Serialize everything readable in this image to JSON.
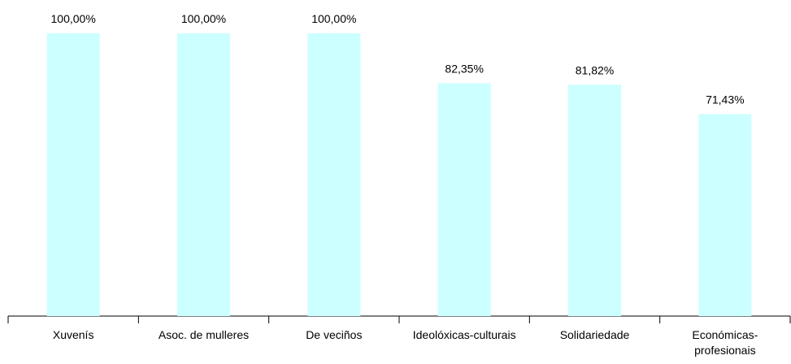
{
  "chart_data": {
    "type": "bar",
    "categories": [
      "Xuvenís",
      "Asoc. de mulleres",
      "De veciños",
      "Ideolóxicas-culturais",
      "Solidariedade",
      "Económicas-profesionais"
    ],
    "values": [
      100.0,
      100.0,
      100.0,
      82.35,
      81.82,
      71.43
    ],
    "data_labels": [
      "100,00%",
      "100,00%",
      "100,00%",
      "82,35%",
      "81,82%",
      "71,43%"
    ],
    "title": "",
    "xlabel": "",
    "ylabel": "",
    "ylim": [
      0,
      100
    ],
    "grid": false,
    "legend": "none",
    "bar_color": "#ccffff",
    "axis_color": "#000000"
  }
}
